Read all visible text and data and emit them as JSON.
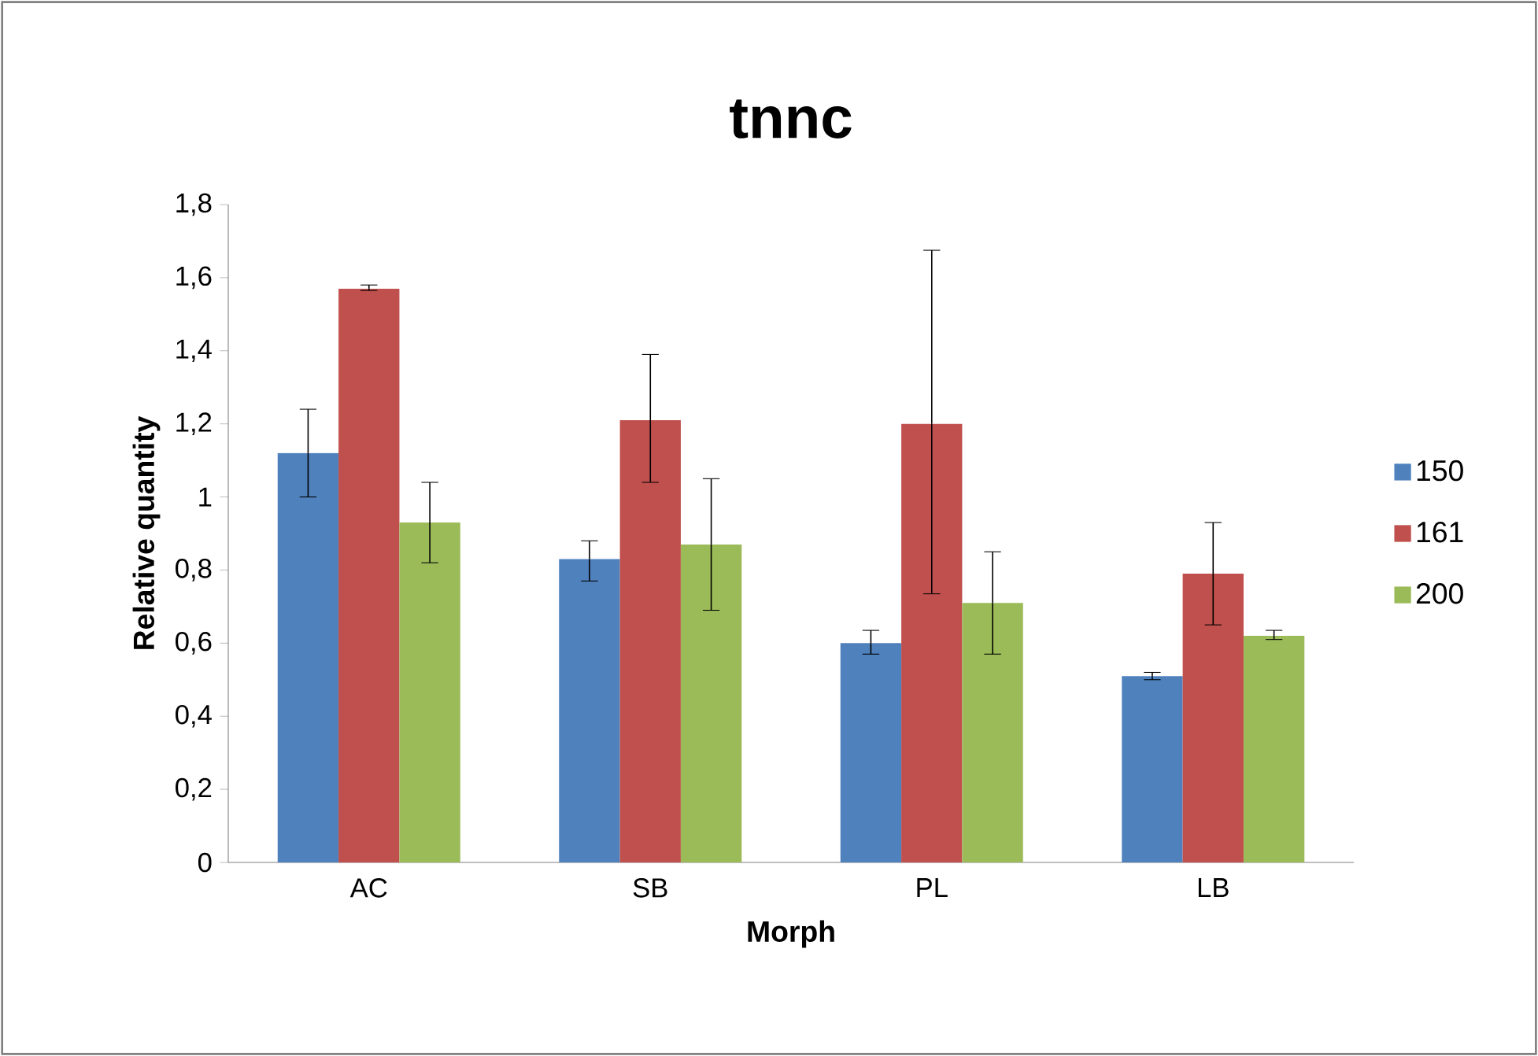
{
  "chart_data": {
    "type": "bar",
    "title": "tnnc",
    "xlabel": "Morph",
    "ylabel": "Relative quantity",
    "categories": [
      "AC",
      "SB",
      "PL",
      "LB"
    ],
    "series": [
      {
        "name": "150",
        "color": "#4f81bd",
        "values": [
          1.12,
          0.83,
          0.6,
          0.51
        ],
        "errors": [
          [
            1.0,
            1.24
          ],
          [
            0.77,
            0.88
          ],
          [
            0.57,
            0.635
          ],
          [
            0.5,
            0.52
          ]
        ]
      },
      {
        "name": "161",
        "color": "#c0504d",
        "values": [
          1.57,
          1.21,
          1.2,
          0.79
        ],
        "errors": [
          [
            1.565,
            1.58
          ],
          [
            1.04,
            1.39
          ],
          [
            0.735,
            1.675
          ],
          [
            0.65,
            0.93
          ]
        ]
      },
      {
        "name": "200",
        "color": "#9bbb59",
        "values": [
          0.93,
          0.87,
          0.71,
          0.62
        ],
        "errors": [
          [
            0.82,
            1.04
          ],
          [
            0.69,
            1.05
          ],
          [
            0.57,
            0.85
          ],
          [
            0.61,
            0.635
          ]
        ]
      }
    ],
    "ylim": [
      0,
      1.8
    ],
    "yticks": [
      0,
      {
        "value": 0.2,
        "label": "0,2"
      },
      {
        "value": 0.4,
        "label": "0,4"
      },
      {
        "value": 0.6,
        "label": "0,6"
      },
      {
        "value": 0.8,
        "label": "0,8"
      },
      1,
      {
        "value": 1.2,
        "label": "1,2"
      },
      {
        "value": 1.4,
        "label": "1,4"
      },
      {
        "value": 1.6,
        "label": "1,6"
      },
      {
        "value": 1.8,
        "label": "1,8"
      }
    ],
    "legend": "right"
  }
}
